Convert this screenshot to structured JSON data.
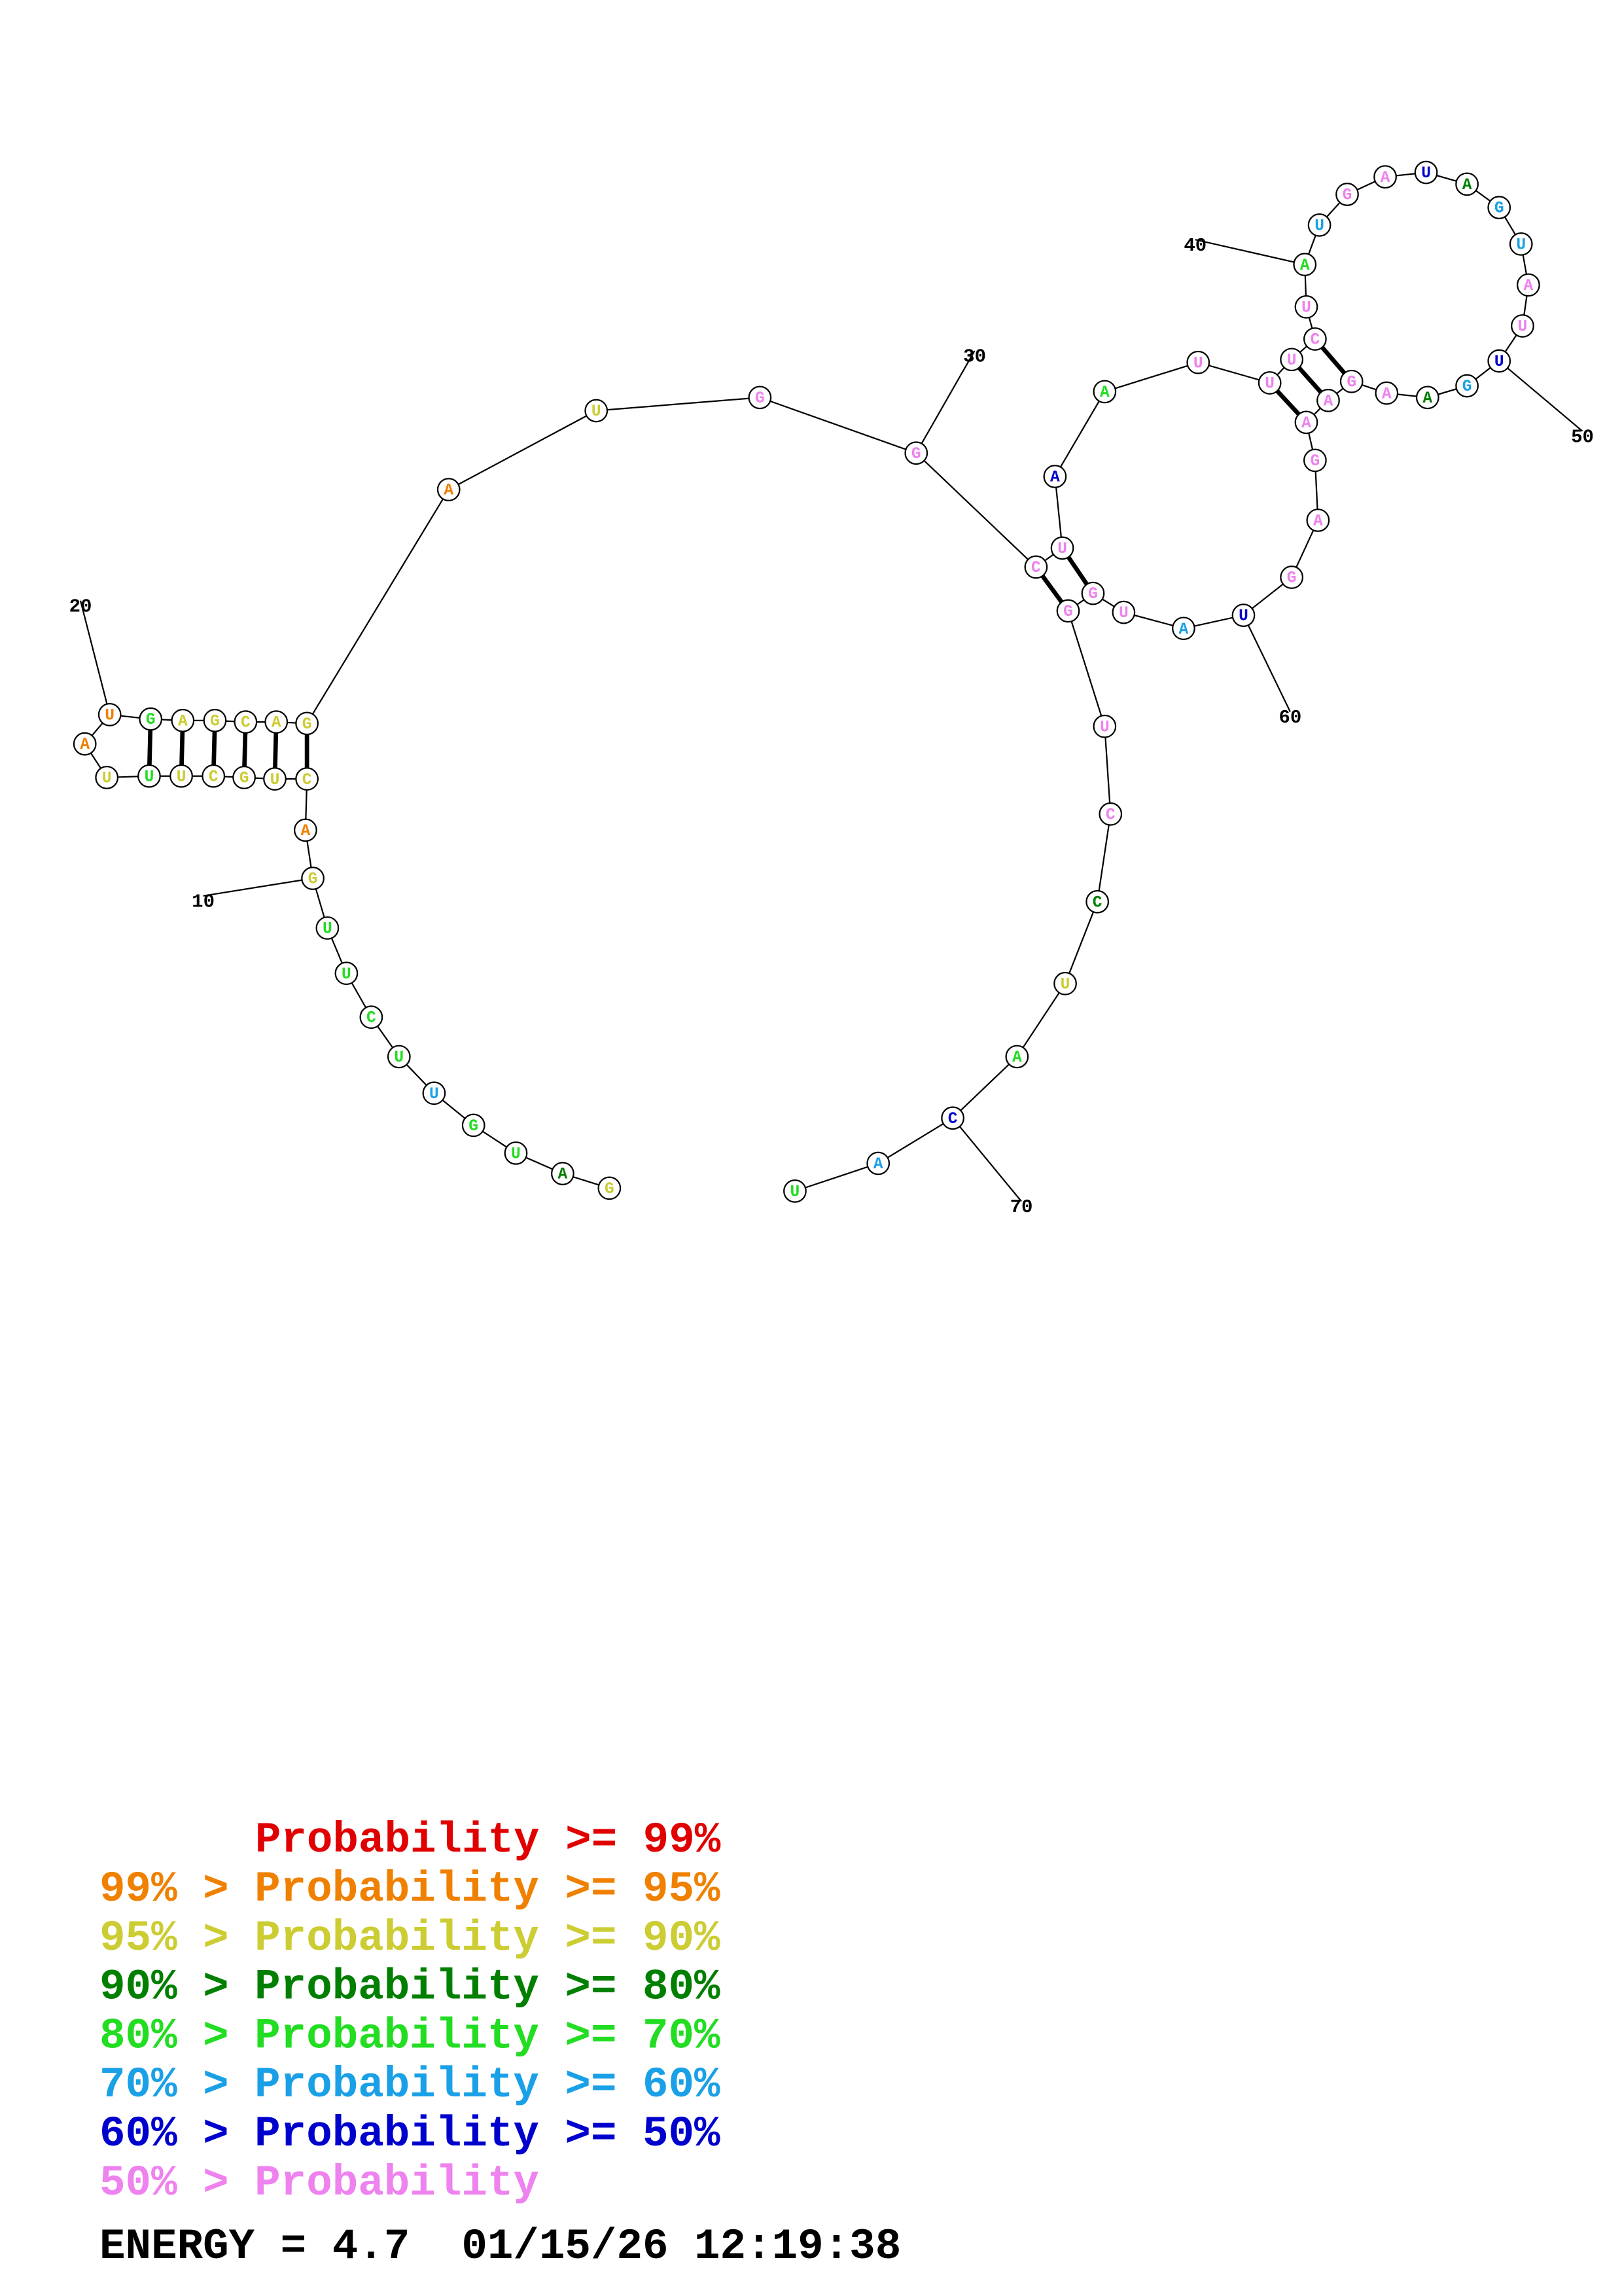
{
  "nucleotides": [
    {
      "base": "G",
      "color": "#cccc33"
    },
    {
      "base": "A",
      "color": "#007f00"
    },
    {
      "base": "U",
      "color": "#22dd22"
    },
    {
      "base": "G",
      "color": "#22dd22"
    },
    {
      "base": "U",
      "color": "#1aa0e6"
    },
    {
      "base": "U",
      "color": "#22dd22"
    },
    {
      "base": "C",
      "color": "#22dd22"
    },
    {
      "base": "U",
      "color": "#22dd22"
    },
    {
      "base": "U",
      "color": "#22dd22"
    },
    {
      "base": "G",
      "color": "#cccc33"
    },
    {
      "base": "A",
      "color": "#f08000"
    },
    {
      "base": "C",
      "color": "#cccc33"
    },
    {
      "base": "U",
      "color": "#cccc33"
    },
    {
      "base": "G",
      "color": "#cccc33"
    },
    {
      "base": "C",
      "color": "#cccc33"
    },
    {
      "base": "U",
      "color": "#cccc33"
    },
    {
      "base": "U",
      "color": "#22dd22"
    },
    {
      "base": "U",
      "color": "#cccc33"
    },
    {
      "base": "A",
      "color": "#f08000"
    },
    {
      "base": "U",
      "color": "#f08000"
    },
    {
      "base": "G",
      "color": "#22dd22"
    },
    {
      "base": "A",
      "color": "#cccc33"
    },
    {
      "base": "G",
      "color": "#cccc33"
    },
    {
      "base": "C",
      "color": "#cccc33"
    },
    {
      "base": "A",
      "color": "#cccc33"
    },
    {
      "base": "G",
      "color": "#cccc33"
    },
    {
      "base": "A",
      "color": "#f08000"
    },
    {
      "base": "U",
      "color": "#cccc33"
    },
    {
      "base": "G",
      "color": "#ee82ee"
    },
    {
      "base": "G",
      "color": "#ee82ee"
    },
    {
      "base": "C",
      "color": "#ee82ee"
    },
    {
      "base": "U",
      "color": "#ee82ee"
    },
    {
      "base": "A",
      "color": "#0000cc"
    },
    {
      "base": "A",
      "color": "#22dd22"
    },
    {
      "base": "U",
      "color": "#ee82ee"
    },
    {
      "base": "U",
      "color": "#ee82ee"
    },
    {
      "base": "U",
      "color": "#ee82ee"
    },
    {
      "base": "C",
      "color": "#ee82ee"
    },
    {
      "base": "U",
      "color": "#ee82ee"
    },
    {
      "base": "A",
      "color": "#22dd22"
    },
    {
      "base": "U",
      "color": "#1aa0e6"
    },
    {
      "base": "G",
      "color": "#ee82ee"
    },
    {
      "base": "A",
      "color": "#ee82ee"
    },
    {
      "base": "U",
      "color": "#0000cc"
    },
    {
      "base": "A",
      "color": "#007f00"
    },
    {
      "base": "G",
      "color": "#1aa0e6"
    },
    {
      "base": "U",
      "color": "#1aa0e6"
    },
    {
      "base": "A",
      "color": "#ee82ee"
    },
    {
      "base": "U",
      "color": "#ee82ee"
    },
    {
      "base": "U",
      "color": "#0000cc"
    },
    {
      "base": "G",
      "color": "#1aa0e6"
    },
    {
      "base": "A",
      "color": "#007f00"
    },
    {
      "base": "A",
      "color": "#ee82ee"
    },
    {
      "base": "G",
      "color": "#ee82ee"
    },
    {
      "base": "A",
      "color": "#ee82ee"
    },
    {
      "base": "A",
      "color": "#ee82ee"
    },
    {
      "base": "G",
      "color": "#ee82ee"
    },
    {
      "base": "A",
      "color": "#ee82ee"
    },
    {
      "base": "G",
      "color": "#ee82ee"
    },
    {
      "base": "U",
      "color": "#0000cc"
    },
    {
      "base": "A",
      "color": "#1aa0e6"
    },
    {
      "base": "U",
      "color": "#ee82ee"
    },
    {
      "base": "G",
      "color": "#ee82ee"
    },
    {
      "base": "G",
      "color": "#ee82ee"
    },
    {
      "base": "U",
      "color": "#ee82ee"
    },
    {
      "base": "C",
      "color": "#ee82ee"
    },
    {
      "base": "C",
      "color": "#007f00"
    },
    {
      "base": "U",
      "color": "#cccc33"
    },
    {
      "base": "A",
      "color": "#22dd22"
    },
    {
      "base": "C",
      "color": "#0000cc"
    },
    {
      "base": "A",
      "color": "#1aa0e6"
    },
    {
      "base": "U",
      "color": "#22dd22"
    }
  ],
  "position_labels": [
    "10",
    "20",
    "30",
    "40",
    "50",
    "60",
    "70"
  ],
  "legend": [
    {
      "text": "Probability >= 99%",
      "color": "#e00000"
    },
    {
      "text": "99% > Probability >= 95%",
      "color": "#f08000"
    },
    {
      "text": "95% > Probability >= 90%",
      "color": "#cccc33"
    },
    {
      "text": "90% > Probability >= 80%",
      "color": "#007f00"
    },
    {
      "text": "80% > Probability >= 70%",
      "color": "#22dd22"
    },
    {
      "text": "70% > Probability >= 60%",
      "color": "#1aa0e6"
    },
    {
      "text": "60% > Probability >= 50%",
      "color": "#0000cc"
    },
    {
      "text": "50% > Probability",
      "color": "#ee82ee"
    }
  ],
  "footer": "ENERGY = 4.7  01/15/26 12:19:38"
}
